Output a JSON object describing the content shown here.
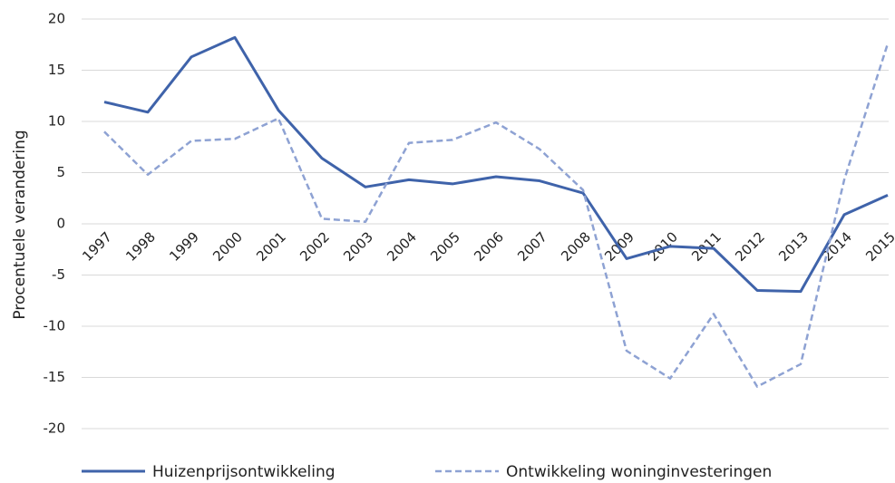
{
  "chart_data": {
    "type": "line",
    "y_label": "Procentuele verandering",
    "categories": [
      "1997",
      "1998",
      "1999",
      "2000",
      "2001",
      "2002",
      "2003",
      "2004",
      "2005",
      "2006",
      "2007",
      "2008",
      "2009",
      "2010",
      "2011",
      "2012",
      "2013",
      "2014",
      "2015"
    ],
    "series": [
      {
        "name": "Huizenprijsontwikkeling",
        "color": "#3f63aa",
        "dash": false,
        "values": [
          11.9,
          10.9,
          16.3,
          18.2,
          11.1,
          6.4,
          3.6,
          4.3,
          3.9,
          4.6,
          4.2,
          3.0,
          -3.4,
          -2.2,
          -2.4,
          -6.5,
          -6.6,
          0.9,
          2.8
        ]
      },
      {
        "name": "Ontwikkeling woninginvesteringen",
        "color": "#8ea2d3",
        "dash": true,
        "values": [
          9.0,
          4.8,
          8.1,
          8.3,
          10.3,
          0.5,
          0.2,
          7.9,
          8.2,
          9.9,
          7.3,
          3.3,
          -12.4,
          -15.1,
          -8.8,
          -15.9,
          -13.7,
          4.3,
          17.6
        ]
      }
    ],
    "ylim": [
      -20,
      20
    ],
    "yticks": [
      -20,
      -15,
      -10,
      -5,
      0,
      5,
      10,
      15,
      20
    ],
    "grid": true
  }
}
